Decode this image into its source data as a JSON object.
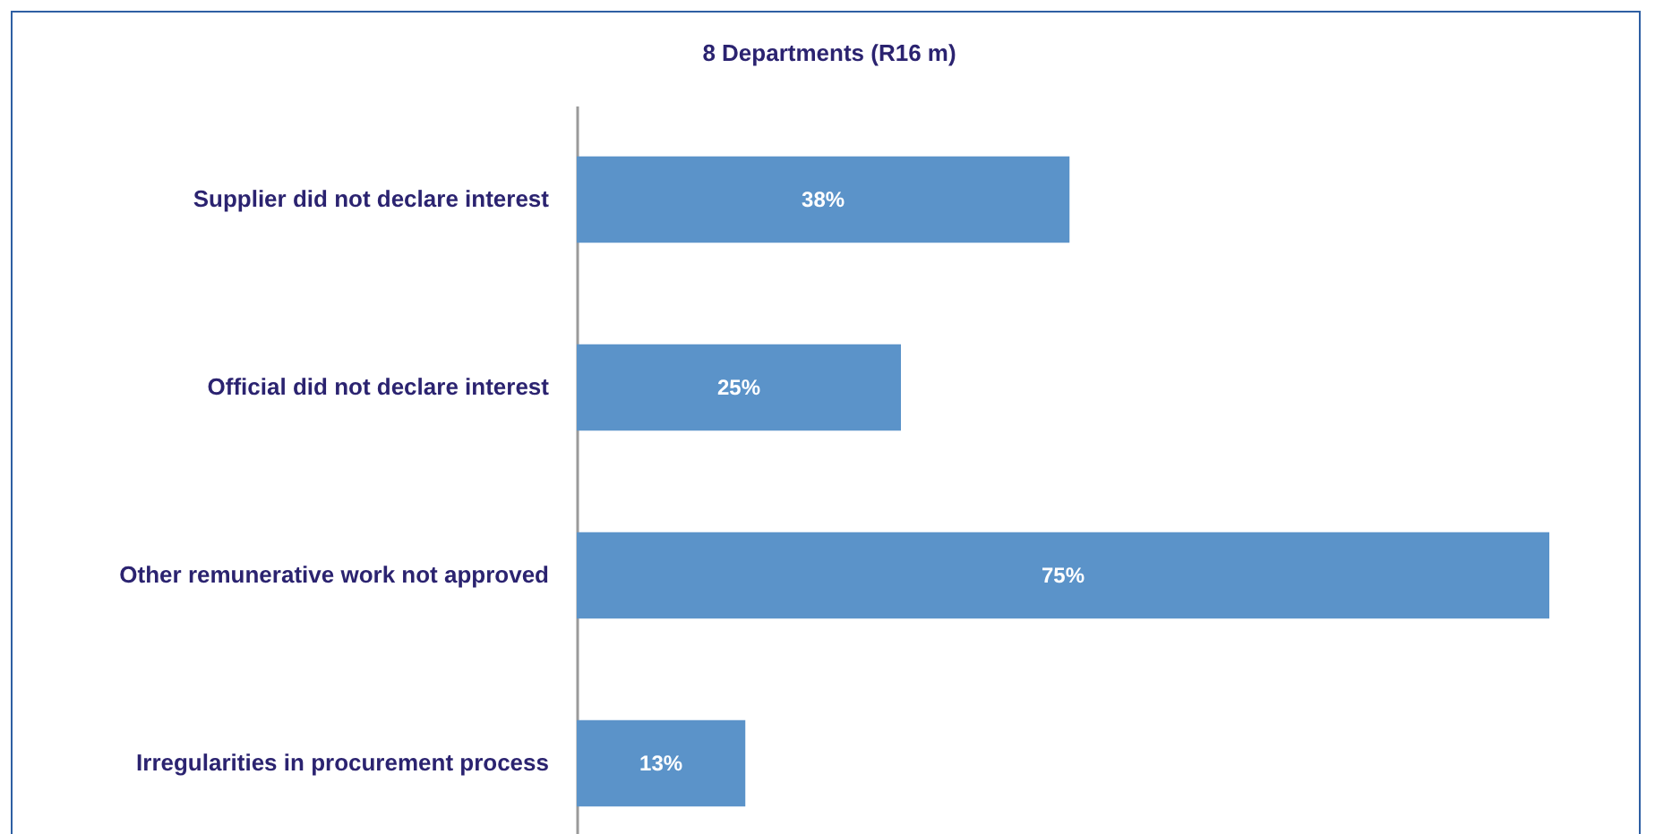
{
  "chart_data": {
    "type": "bar",
    "orientation": "horizontal",
    "title": "8 Departments (R16 m)",
    "categories": [
      "Supplier did not declare interest",
      "Official did not declare interest",
      "Other remunerative work not approved",
      "Irregularities in procurement process"
    ],
    "values": [
      38,
      25,
      75,
      13
    ],
    "value_labels": [
      "38%",
      "25%",
      "75%",
      "13%"
    ],
    "color": "#5b93c9"
  }
}
